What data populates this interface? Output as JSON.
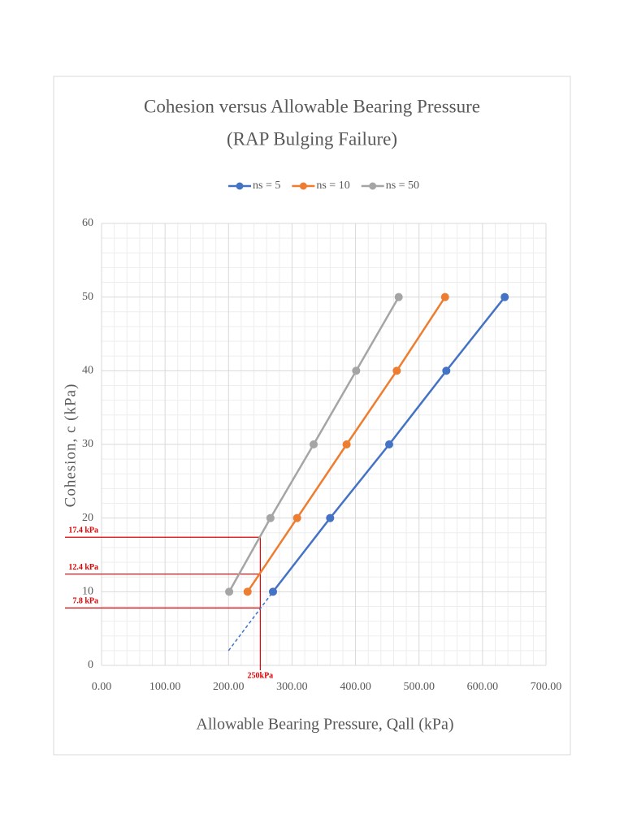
{
  "chart_data": {
    "type": "line",
    "title": "Cohesion versus Allowable Bearing Pressure",
    "subtitle": "(RAP Bulging Failure)",
    "x_label": "Allowable Bearing Pressure, Qall (kPa)",
    "y_label": "Cohesion, c (kPa)",
    "xlim": [
      0,
      700
    ],
    "ylim": [
      0,
      60
    ],
    "xticks": [
      {
        "value": 0,
        "label": "0.00"
      },
      {
        "value": 100,
        "label": "100.00"
      },
      {
        "value": 200,
        "label": "200.00"
      },
      {
        "value": 300,
        "label": "300.00"
      },
      {
        "value": 400,
        "label": "400.00"
      },
      {
        "value": 500,
        "label": "500.00"
      },
      {
        "value": 600,
        "label": "600.00"
      },
      {
        "value": 700,
        "label": "700.00"
      }
    ],
    "yticks": [
      0,
      10,
      20,
      30,
      40,
      50,
      60
    ],
    "grid": true,
    "minor_grid": true,
    "legend": "top",
    "series": [
      {
        "name": "ns = 5",
        "color": "#4472c4",
        "x": [
          270,
          360,
          453,
          543,
          635
        ],
        "values": [
          10,
          20,
          30,
          40,
          50
        ]
      },
      {
        "name": "ns = 10",
        "color": "#ed7d31",
        "x": [
          230,
          308,
          386,
          465,
          541
        ],
        "values": [
          10,
          20,
          30,
          40,
          50
        ]
      },
      {
        "name": "ns = 50",
        "color": "#a5a5a5",
        "x": [
          201,
          266,
          334,
          401,
          468
        ],
        "values": [
          10,
          20,
          30,
          40,
          50
        ]
      }
    ],
    "extension": {
      "color": "#4472c4",
      "x": [
        200,
        270
      ],
      "values": [
        2,
        10
      ]
    },
    "marker_color": "#e00000",
    "x_marker": {
      "value": 250,
      "label": "250kPa"
    },
    "y_markers": [
      {
        "value": 17.4,
        "label": "17.4 kPa"
      },
      {
        "value": 12.4,
        "label": "12.4 kPa"
      },
      {
        "value": 7.8,
        "label": "7.8 kPa"
      }
    ]
  }
}
